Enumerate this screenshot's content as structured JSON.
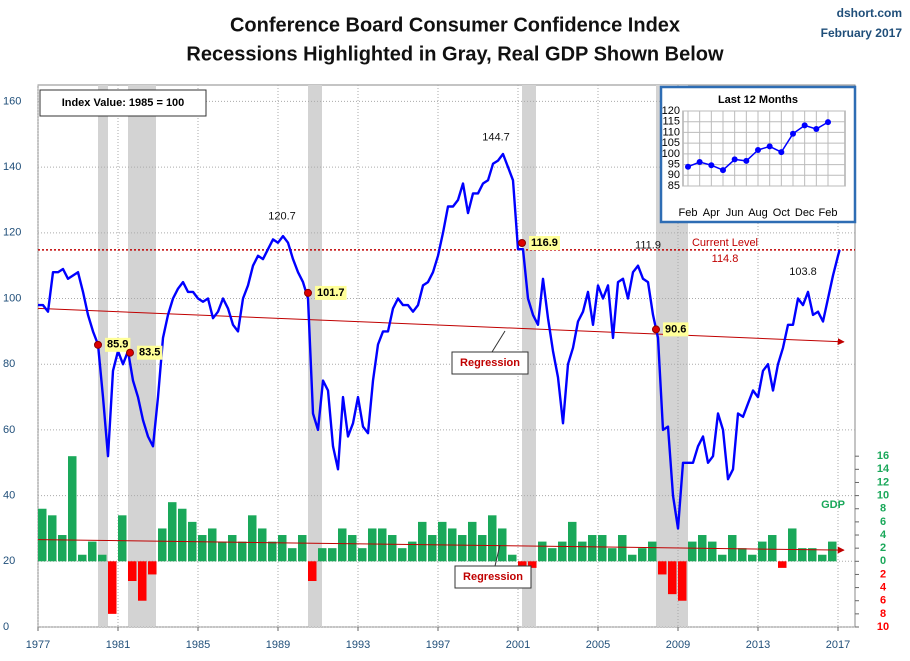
{
  "chart_data": [
    {
      "type": "line",
      "title": "Conference Board Consumer Confidence Index",
      "subtitle": "Recessions Highlighted in Gray, Real GDP Shown Below",
      "source": "dshort.com",
      "date": "February 2017",
      "note": "Index Value: 1985 = 100",
      "xlim": [
        1977,
        2017.85
      ],
      "xticks": [
        1977,
        1981,
        1985,
        1989,
        1993,
        1997,
        2001,
        2005,
        2009,
        2013,
        2017
      ],
      "ylim": [
        0,
        165
      ],
      "yticks": [
        0,
        20,
        40,
        60,
        80,
        100,
        120,
        140,
        160
      ],
      "y2lim": [
        -10,
        72.5
      ],
      "y2ticks": [
        {
          "value": -10,
          "label": "10"
        },
        {
          "value": -8,
          "label": "8"
        },
        {
          "value": -6,
          "label": "6"
        },
        {
          "value": -4,
          "label": "4"
        },
        {
          "value": -2,
          "label": "2"
        },
        0,
        2,
        4,
        6,
        8,
        10,
        12,
        14,
        16
      ],
      "grid": true,
      "recession_color": "#d3d3d3",
      "recessions": [
        [
          1980.0,
          1980.5
        ],
        [
          1981.5,
          1982.9
        ],
        [
          1990.5,
          1991.2
        ],
        [
          2001.2,
          2001.9
        ],
        [
          2007.9,
          2009.5
        ]
      ],
      "series": [
        {
          "color": "#0000ff",
          "x": [
            1977,
            1977.25,
            1977.5,
            1977.75,
            1978,
            1978.25,
            1978.5,
            1978.75,
            1979,
            1979.25,
            1979.5,
            1979.75,
            1980,
            1980.25,
            1980.5,
            1980.75,
            1981,
            1981.25,
            1981.5,
            1981.75,
            1982,
            1982.25,
            1982.5,
            1982.75,
            1983,
            1983.25,
            1983.5,
            1983.75,
            1984,
            1984.25,
            1984.5,
            1984.75,
            1985,
            1985.25,
            1985.5,
            1985.75,
            1986,
            1986.25,
            1986.5,
            1986.75,
            1987,
            1987.25,
            1987.5,
            1987.75,
            1988,
            1988.25,
            1988.5,
            1988.75,
            1989,
            1989.25,
            1989.5,
            1989.75,
            1990,
            1990.25,
            1990.5,
            1990.75,
            1991,
            1991.25,
            1991.5,
            1991.75,
            1992,
            1992.25,
            1992.5,
            1992.75,
            1993,
            1993.25,
            1993.5,
            1993.75,
            1994,
            1994.25,
            1994.5,
            1994.75,
            1995,
            1995.25,
            1995.5,
            1995.75,
            1996,
            1996.25,
            1996.5,
            1996.75,
            1997,
            1997.25,
            1997.5,
            1997.75,
            1998,
            1998.25,
            1998.5,
            1998.75,
            1999,
            1999.25,
            1999.5,
            1999.75,
            2000,
            2000.25,
            2000.5,
            2000.75,
            2001,
            2001.25,
            2001.5,
            2001.75,
            2002,
            2002.25,
            2002.5,
            2002.75,
            2003,
            2003.25,
            2003.5,
            2003.75,
            2004,
            2004.25,
            2004.5,
            2004.75,
            2005,
            2005.25,
            2005.5,
            2005.75,
            2006,
            2006.25,
            2006.5,
            2006.75,
            2007,
            2007.25,
            2007.5,
            2007.75,
            2008,
            2008.25,
            2008.5,
            2008.75,
            2009,
            2009.25,
            2009.5,
            2009.75,
            2010,
            2010.25,
            2010.5,
            2010.75,
            2011,
            2011.25,
            2011.5,
            2011.75,
            2012,
            2012.25,
            2012.5,
            2012.75,
            2013,
            2013.25,
            2013.5,
            2013.75,
            2014,
            2014.25,
            2014.5,
            2014.75,
            2015,
            2015.25,
            2015.5,
            2015.75,
            2016,
            2016.25,
            2016.5,
            2016.75,
            2017,
            2017.08
          ],
          "values": [
            98,
            98,
            96,
            108,
            108,
            109,
            106,
            107,
            108,
            102,
            95,
            90,
            86,
            70,
            52,
            78,
            84,
            80,
            84,
            75,
            70,
            63,
            58,
            55,
            70,
            88,
            95,
            100,
            103,
            105,
            102,
            102,
            100,
            99,
            100,
            94,
            96,
            100,
            97,
            92,
            90,
            100,
            104,
            110,
            113,
            112,
            115,
            118,
            117,
            119,
            117,
            112,
            108,
            105,
            100,
            65,
            60,
            75,
            72,
            55,
            48,
            70,
            58,
            62,
            70,
            61,
            59,
            75,
            86,
            90,
            90,
            97,
            100,
            98,
            98,
            96,
            98,
            104,
            105,
            108,
            113,
            120,
            128,
            128,
            130,
            135,
            126,
            132,
            132,
            135,
            136,
            141,
            142,
            144,
            140,
            136,
            115,
            115,
            100,
            95,
            92,
            106,
            94,
            84,
            76,
            62,
            80,
            85,
            93,
            96,
            102,
            92,
            104,
            100,
            104,
            88,
            105,
            106,
            100,
            108,
            110,
            106,
            105,
            95,
            88,
            60,
            61,
            40,
            30,
            50,
            50,
            50,
            55,
            58,
            50,
            52,
            65,
            60,
            45,
            48,
            65,
            64,
            68,
            72,
            70,
            78,
            80,
            72,
            80,
            85,
            92,
            92,
            100,
            98,
            102,
            95,
            96,
            93,
            100,
            107,
            113,
            114.8
          ]
        },
        {
          "type": "bar",
          "axis": "y2",
          "label": "GDP",
          "color": "#1aa85a",
          "negative_color": "#ff0000",
          "x": [
            1977,
            1977.5,
            1978,
            1978.5,
            1979,
            1979.5,
            1980,
            1980.5,
            1981,
            1981.5,
            1982,
            1982.5,
            1983,
            1983.5,
            1984,
            1984.5,
            1985,
            1985.5,
            1986,
            1986.5,
            1987,
            1987.5,
            1988,
            1988.5,
            1989,
            1989.5,
            1990,
            1990.5,
            1991,
            1991.5,
            1992,
            1992.5,
            1993,
            1993.5,
            1994,
            1994.5,
            1995,
            1995.5,
            1996,
            1996.5,
            1997,
            1997.5,
            1998,
            1998.5,
            1999,
            1999.5,
            2000,
            2000.5,
            2001,
            2001.5,
            2002,
            2002.5,
            2003,
            2003.5,
            2004,
            2004.5,
            2005,
            2005.5,
            2006,
            2006.5,
            2007,
            2007.5,
            2008,
            2008.5,
            2009,
            2009.5,
            2010,
            2010.5,
            2011,
            2011.5,
            2012,
            2012.5,
            2013,
            2013.5,
            2014,
            2014.5,
            2015,
            2015.5,
            2016,
            2016.5
          ],
          "values": [
            8,
            7,
            4,
            16,
            1,
            3,
            1,
            -8,
            7,
            -3,
            -6,
            -2,
            5,
            9,
            8,
            6,
            4,
            5,
            3,
            4,
            3,
            7,
            5,
            3,
            4,
            2,
            4,
            -3,
            2,
            2,
            5,
            4,
            2,
            5,
            5,
            4,
            2,
            3,
            6,
            4,
            6,
            5,
            4,
            6,
            4,
            7,
            5,
            1,
            -1,
            -1,
            3,
            2,
            3,
            6,
            3,
            4,
            4,
            2,
            4,
            1,
            2,
            3,
            -2,
            -5,
            -6,
            3,
            4,
            3,
            1,
            4,
            2,
            1,
            3,
            4,
            -1,
            5,
            2,
            2,
            1,
            3
          ]
        }
      ],
      "trends": [
        {
          "label": "Regression",
          "color": "#c00000",
          "x": [
            1977,
            2017.3
          ],
          "values": [
            97,
            86.8
          ]
        },
        {
          "label": "Regression",
          "axis": "y2",
          "color": "#c00000",
          "x": [
            1977,
            2017.3
          ],
          "values": [
            3.3,
            1.7
          ]
        }
      ],
      "annotations": [
        {
          "x": 1980.0,
          "value": 85.9
        },
        {
          "x": 1981.6,
          "value": 83.5
        },
        {
          "x": 1990.5,
          "value": 101.7
        },
        {
          "x": 2001.2,
          "value": 116.9
        },
        {
          "x": 2007.9,
          "value": 90.6
        }
      ],
      "peaks": [
        {
          "x": 1989.2,
          "value": 120.7
        },
        {
          "x": 1999.9,
          "value": 144.7
        },
        {
          "x": 2007.5,
          "value": 111.9
        },
        {
          "x": 2015.25,
          "value": 103.8
        }
      ],
      "current_level": {
        "label": "Current Level",
        "value": 114.8,
        "color": "#c00000"
      }
    },
    {
      "type": "line",
      "title": "Last 12 Months",
      "categories": [
        "Feb",
        null,
        "Apr",
        null,
        "Jun",
        null,
        "Aug",
        null,
        "Oct",
        null,
        "Dec",
        null,
        "Feb"
      ],
      "values": [
        94.0,
        96.2,
        94.7,
        92.4,
        97.4,
        96.7,
        101.8,
        103.5,
        100.8,
        109.4,
        113.3,
        111.6,
        114.8
      ],
      "ylim": [
        85,
        120
      ],
      "yticks": [
        85,
        90,
        95,
        100,
        105,
        110,
        115,
        120
      ],
      "color": "#0000ff",
      "grid": true
    }
  ]
}
